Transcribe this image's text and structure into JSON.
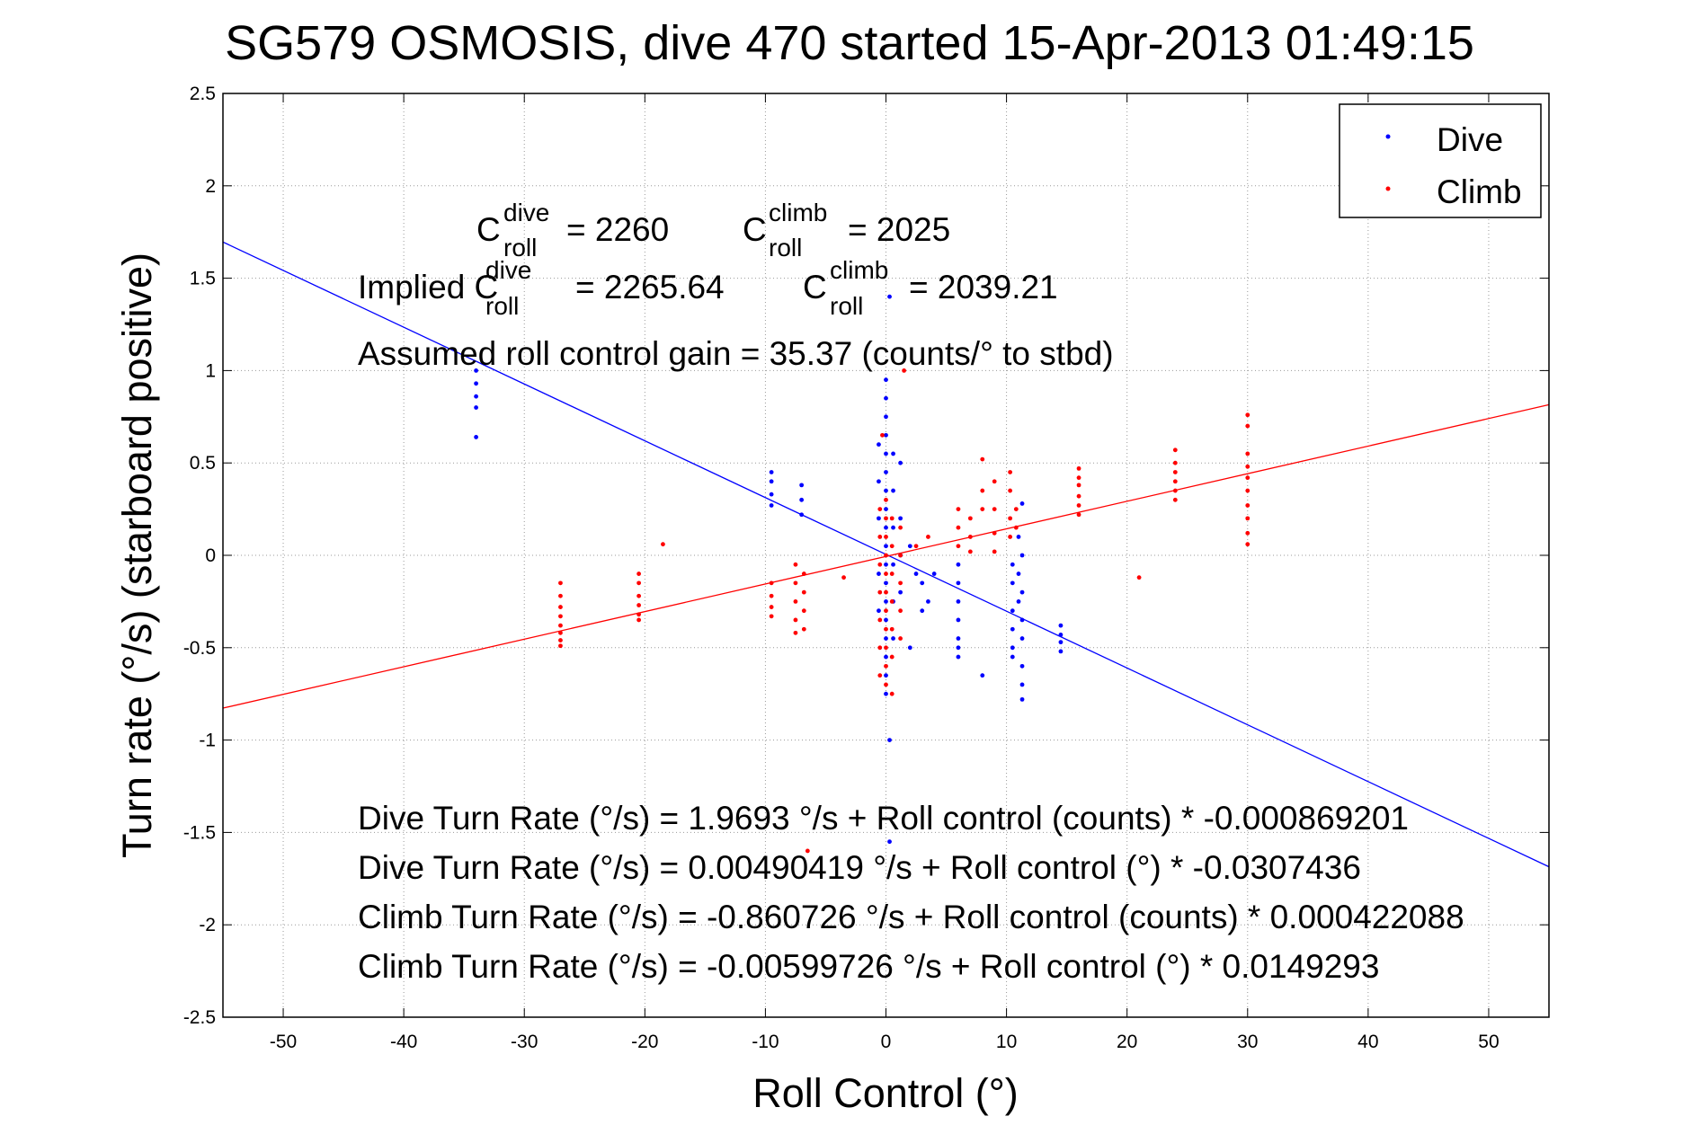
{
  "chart_data": {
    "type": "scatter",
    "title": "SG579 OSMOSIS, dive 470 started 15-Apr-2013 01:49:15",
    "xlabel": "Roll Control (°)",
    "ylabel": "Turn rate (°/s) (starboard positive)",
    "xlim": [
      -55,
      55
    ],
    "ylim": [
      -2.5,
      2.5
    ],
    "xticks": [
      -50,
      -40,
      -30,
      -20,
      -10,
      0,
      10,
      20,
      30,
      40,
      50
    ],
    "yticks": [
      2.5,
      2,
      1.5,
      1,
      0.5,
      0,
      -0.5,
      -1,
      -1.5,
      -2,
      -2.5
    ],
    "xtick_labels": [
      "-50",
      "-40",
      "-30",
      "-20",
      "-10",
      "0",
      "10",
      "20",
      "30",
      "40",
      "50"
    ],
    "ytick_labels": [
      "2.5",
      "2",
      "1.5",
      "1",
      "0.5",
      "0",
      "-0.5",
      "-1",
      "-1.5",
      "-2",
      "-2.5"
    ],
    "grid": true,
    "legend_position": "top-right",
    "colors": {
      "dive": "#0000ff",
      "climb": "#ff0000"
    },
    "series": [
      {
        "name": "Dive",
        "color": "#0000ff",
        "points": [
          [
            -34,
            1.0
          ],
          [
            -34,
            0.93
          ],
          [
            -34,
            0.86
          ],
          [
            -34,
            0.8
          ],
          [
            -34,
            0.64
          ],
          [
            -9.5,
            0.45
          ],
          [
            -9.5,
            0.4
          ],
          [
            -9.5,
            0.33
          ],
          [
            -9.5,
            0.27
          ],
          [
            -7,
            0.38
          ],
          [
            -7,
            0.3
          ],
          [
            -7,
            0.22
          ],
          [
            0,
            0.95
          ],
          [
            0,
            0.85
          ],
          [
            0,
            0.75
          ],
          [
            0,
            0.65
          ],
          [
            0,
            0.55
          ],
          [
            0,
            0.45
          ],
          [
            0,
            0.35
          ],
          [
            0,
            0.25
          ],
          [
            0,
            0.15
          ],
          [
            0,
            0.05
          ],
          [
            0,
            -0.05
          ],
          [
            0,
            -0.15
          ],
          [
            0,
            -0.25
          ],
          [
            0,
            -0.35
          ],
          [
            0,
            -0.45
          ],
          [
            0,
            -0.55
          ],
          [
            0,
            -0.65
          ],
          [
            0,
            -0.75
          ],
          [
            0.3,
            1.4
          ],
          [
            0.3,
            -1.0
          ],
          [
            0.3,
            -1.55
          ],
          [
            -0.6,
            0.6
          ],
          [
            -0.6,
            0.4
          ],
          [
            -0.6,
            0.2
          ],
          [
            -0.6,
            -0.1
          ],
          [
            -0.6,
            -0.3
          ],
          [
            0.6,
            0.55
          ],
          [
            0.6,
            0.35
          ],
          [
            0.6,
            0.15
          ],
          [
            0.6,
            -0.05
          ],
          [
            0.6,
            -0.25
          ],
          [
            0.6,
            -0.45
          ],
          [
            1.2,
            0.5
          ],
          [
            1.2,
            0.2
          ],
          [
            1.2,
            0.0
          ],
          [
            1.2,
            -0.2
          ],
          [
            2,
            0.05
          ],
          [
            2.5,
            -0.1
          ],
          [
            3,
            -0.15
          ],
          [
            3.5,
            -0.25
          ],
          [
            4,
            -0.1
          ],
          [
            2,
            -0.5
          ],
          [
            3,
            -0.3
          ],
          [
            6,
            -0.05
          ],
          [
            6,
            -0.15
          ],
          [
            6,
            -0.25
          ],
          [
            6,
            -0.35
          ],
          [
            6,
            -0.45
          ],
          [
            6,
            -0.5
          ],
          [
            6,
            -0.55
          ],
          [
            8,
            -0.65
          ],
          [
            10.5,
            -0.05
          ],
          [
            10.5,
            -0.15
          ],
          [
            10.5,
            -0.3
          ],
          [
            10.5,
            -0.4
          ],
          [
            10.5,
            -0.5
          ],
          [
            10.5,
            -0.55
          ],
          [
            11,
            0.1
          ],
          [
            11,
            -0.1
          ],
          [
            11,
            -0.25
          ],
          [
            11.3,
            0.28
          ],
          [
            11.3,
            0.0
          ],
          [
            11.3,
            -0.2
          ],
          [
            11.3,
            -0.35
          ],
          [
            11.3,
            -0.45
          ],
          [
            11.3,
            -0.6
          ],
          [
            11.3,
            -0.7
          ],
          [
            11.3,
            -0.78
          ],
          [
            14.5,
            -0.38
          ],
          [
            14.5,
            -0.43
          ],
          [
            14.5,
            -0.47
          ],
          [
            14.5,
            -0.52
          ]
        ]
      },
      {
        "name": "Climb",
        "color": "#ff0000",
        "points": [
          [
            -27,
            -0.15
          ],
          [
            -27,
            -0.22
          ],
          [
            -27,
            -0.28
          ],
          [
            -27,
            -0.33
          ],
          [
            -27,
            -0.38
          ],
          [
            -27,
            -0.42
          ],
          [
            -27,
            -0.46
          ],
          [
            -27,
            -0.49
          ],
          [
            -20.5,
            -0.1
          ],
          [
            -20.5,
            -0.15
          ],
          [
            -20.5,
            -0.22
          ],
          [
            -20.5,
            -0.27
          ],
          [
            -20.5,
            -0.32
          ],
          [
            -20.5,
            -0.35
          ],
          [
            -18.5,
            0.06
          ],
          [
            -9.5,
            -0.15
          ],
          [
            -9.5,
            -0.22
          ],
          [
            -9.5,
            -0.28
          ],
          [
            -9.5,
            -0.33
          ],
          [
            -7.5,
            -0.05
          ],
          [
            -7.5,
            -0.15
          ],
          [
            -7.5,
            -0.25
          ],
          [
            -7.5,
            -0.35
          ],
          [
            -7.5,
            -0.42
          ],
          [
            -6.8,
            -0.1
          ],
          [
            -6.8,
            -0.2
          ],
          [
            -6.8,
            -0.3
          ],
          [
            -6.8,
            -0.4
          ],
          [
            -3.5,
            -0.12
          ],
          [
            0,
            0.3
          ],
          [
            0,
            0.2
          ],
          [
            0,
            0.1
          ],
          [
            0,
            0.0
          ],
          [
            0,
            -0.1
          ],
          [
            0,
            -0.2
          ],
          [
            0,
            -0.3
          ],
          [
            0,
            -0.4
          ],
          [
            0,
            -0.5
          ],
          [
            0,
            -0.6
          ],
          [
            0,
            -0.7
          ],
          [
            -0.5,
            0.25
          ],
          [
            -0.5,
            0.1
          ],
          [
            -0.5,
            -0.05
          ],
          [
            -0.5,
            -0.2
          ],
          [
            -0.5,
            -0.35
          ],
          [
            -0.5,
            -0.5
          ],
          [
            -0.5,
            -0.65
          ],
          [
            0.5,
            0.2
          ],
          [
            0.5,
            0.05
          ],
          [
            0.5,
            -0.1
          ],
          [
            0.5,
            -0.25
          ],
          [
            0.5,
            -0.4
          ],
          [
            0.5,
            -0.55
          ],
          [
            0.5,
            -0.75
          ],
          [
            1.2,
            0.15
          ],
          [
            1.2,
            0.0
          ],
          [
            1.2,
            -0.15
          ],
          [
            1.2,
            -0.3
          ],
          [
            1.2,
            -0.45
          ],
          [
            1.5,
            1.0
          ],
          [
            -0.3,
            0.65
          ],
          [
            2.5,
            0.05
          ],
          [
            3.5,
            0.1
          ],
          [
            6,
            0.25
          ],
          [
            6,
            0.15
          ],
          [
            6,
            0.05
          ],
          [
            7,
            0.2
          ],
          [
            7,
            0.1
          ],
          [
            7,
            0.02
          ],
          [
            8,
            0.52
          ],
          [
            8,
            0.35
          ],
          [
            8,
            0.25
          ],
          [
            9,
            0.4
          ],
          [
            9,
            0.25
          ],
          [
            9,
            0.12
          ],
          [
            9,
            0.02
          ],
          [
            10.3,
            0.45
          ],
          [
            10.3,
            0.35
          ],
          [
            10.3,
            0.2
          ],
          [
            10.3,
            0.1
          ],
          [
            10.8,
            0.25
          ],
          [
            10.8,
            0.15
          ],
          [
            16,
            0.47
          ],
          [
            16,
            0.42
          ],
          [
            16,
            0.38
          ],
          [
            16,
            0.32
          ],
          [
            16,
            0.27
          ],
          [
            16,
            0.22
          ],
          [
            21,
            -0.12
          ],
          [
            24,
            0.57
          ],
          [
            24,
            0.5
          ],
          [
            24,
            0.45
          ],
          [
            24,
            0.4
          ],
          [
            24,
            0.35
          ],
          [
            24,
            0.3
          ],
          [
            30,
            0.76
          ],
          [
            30,
            0.7
          ],
          [
            30,
            0.55
          ],
          [
            30,
            0.48
          ],
          [
            30,
            0.42
          ],
          [
            30,
            0.35
          ],
          [
            30,
            0.27
          ],
          [
            30,
            0.2
          ],
          [
            30,
            0.12
          ],
          [
            30,
            0.06
          ],
          [
            -6.5,
            -1.6
          ]
        ]
      }
    ],
    "fit_lines": [
      {
        "name": "Dive fit",
        "color": "#0000ff",
        "intercept": 0.00490419,
        "slope": -0.0307436
      },
      {
        "name": "Climb fit",
        "color": "#ff0000",
        "intercept": -0.00599726,
        "slope": 0.0149293
      }
    ],
    "annotations": {
      "c_roll_dive": {
        "prefix": "C",
        "sup": "dive",
        "sub": "roll",
        "value": "= 2260"
      },
      "c_roll_climb": {
        "prefix": "C",
        "sup": "climb",
        "sub": "roll",
        "value": "= 2025"
      },
      "implied_dive": {
        "prefix": "Implied C",
        "sup": "dive",
        "sub": "roll",
        "value": "= 2265.64"
      },
      "implied_climb": {
        "prefix": "C",
        "sup": "climb",
        "sub": "roll",
        "value": "= 2039.21"
      },
      "gain": "Assumed roll control gain = 35.37 (counts/° to stbd)",
      "eq1": "Dive Turn Rate (°/s) = 1.9693 °/s + Roll control (counts) * -0.000869201",
      "eq2": "Dive Turn Rate (°/s) = 0.00490419 °/s + Roll control (°) * -0.0307436",
      "eq3": "Climb Turn Rate (°/s) = -0.860726 °/s + Roll control (counts) * 0.000422088",
      "eq4": "Climb Turn Rate (°/s) = -0.00599726 °/s + Roll control (°) * 0.0149293"
    }
  }
}
